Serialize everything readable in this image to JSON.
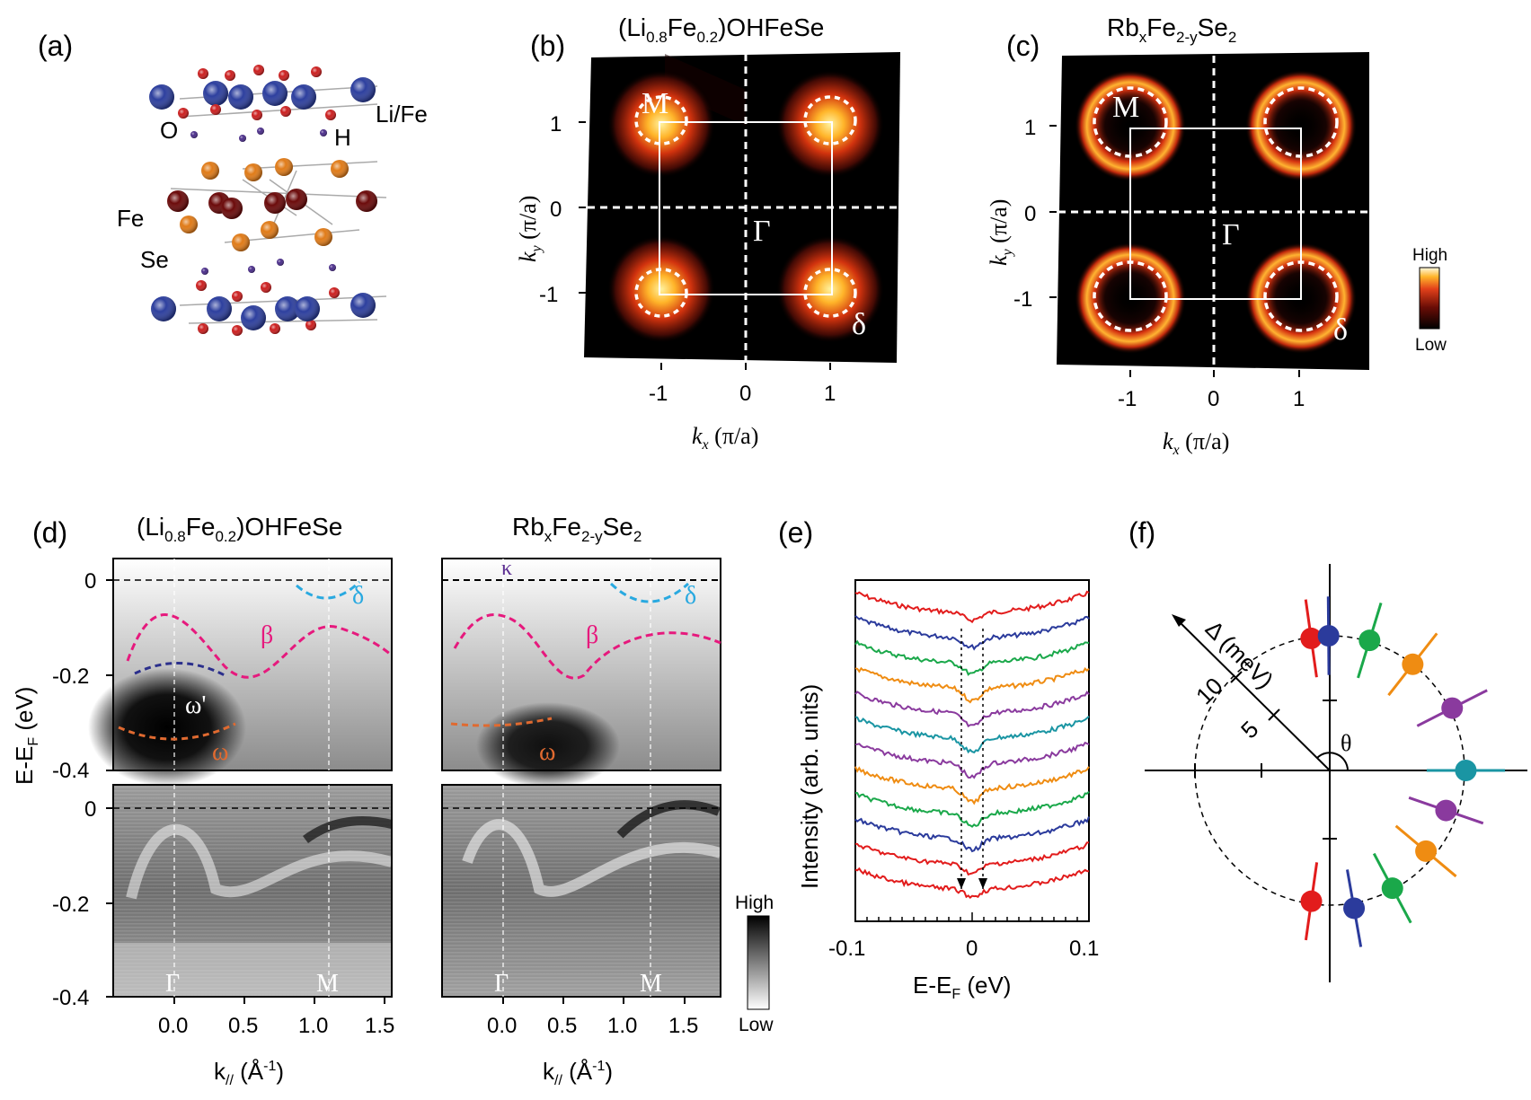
{
  "panels": {
    "a": {
      "label": "(a)",
      "atoms": {
        "o": "O",
        "h": "H",
        "li_fe": "Li/Fe",
        "fe": "Fe",
        "se": "Se"
      },
      "colors": {
        "li_fe": "#2d3f9e",
        "o": "#cc1f1f",
        "h": "#4a2d8a",
        "fe": "#6b0a0a",
        "se": "#e07b18"
      }
    },
    "b": {
      "label": "(b)",
      "title_main": "(Li",
      "title_sub1": "0.8",
      "title_mid": "Fe",
      "title_sub2": "0.2",
      "title_end": ")OHFeSe",
      "xlabel_k": "k",
      "xlabel_sub": "x",
      "xlabel_unit": " (π/a)",
      "ylabel_k": "k",
      "ylabel_sub": "y",
      "ylabel_unit": " (π/a)",
      "xticks": [
        "-1",
        "0",
        "1"
      ],
      "yticks": [
        "1",
        "0",
        "-1"
      ],
      "point_M": "M",
      "point_Gamma": "Γ",
      "point_delta": "δ"
    },
    "c": {
      "label": "(c)",
      "title_a": "Rb",
      "title_sub1": "x",
      "title_b": "Fe",
      "title_sub2": "2-y",
      "title_c": "Se",
      "title_sub3": "2",
      "xlabel_k": "k",
      "xlabel_sub": "x",
      "xlabel_unit": " (π/a)",
      "ylabel_k": "k",
      "ylabel_sub": "y",
      "ylabel_unit": " (π/a)",
      "xticks": [
        "-1",
        "0",
        "1"
      ],
      "yticks": [
        "1",
        "0",
        "-1"
      ],
      "point_M": "M",
      "point_Gamma": "Γ",
      "point_delta": "δ",
      "colorbar_high": "High",
      "colorbar_low": "Low"
    },
    "d": {
      "label": "(d)",
      "left_title_main": "(Li",
      "left_title_sub1": "0.8",
      "left_title_mid": "Fe",
      "left_title_sub2": "0.2",
      "left_title_end": ")OHFeSe",
      "right_title_a": "Rb",
      "right_title_sub1": "x",
      "right_title_b": "Fe",
      "right_title_sub2": "2-y",
      "right_title_c": "Se",
      "right_title_sub3": "2",
      "ylabel_main": "E-E",
      "ylabel_sub": "F",
      "ylabel_unit": " (eV)",
      "yticks_top": [
        "0",
        "-0.2",
        "-0.4"
      ],
      "yticks_bottom": [
        "0",
        "-0.2",
        "-0.4"
      ],
      "xticks": [
        "0.0",
        "0.5",
        "1.0",
        "1.5"
      ],
      "xlabel_main": "k",
      "xlabel_sub": "//",
      "xlabel_unit": " (Å",
      "xlabel_sup": "-1",
      "xlabel_close": ")",
      "band_labels": {
        "delta": "δ",
        "beta": "β",
        "omega_prime": "ω'",
        "omega": "ω",
        "kappa": "κ"
      },
      "point_Gamma": "Γ",
      "point_M": "M",
      "colorbar_high": "High",
      "colorbar_low": "Low"
    },
    "e": {
      "label": "(e)",
      "ylabel": "Intensity (arb. units)",
      "xlabel_main": "E-E",
      "xlabel_sub": "F",
      "xlabel_unit": " (eV)",
      "xticks": [
        "-0.1",
        "0",
        "0.1"
      ]
    },
    "f": {
      "label": "(f)",
      "radial_label": "Δ (meV)",
      "radial_ticks": [
        "10",
        "5"
      ],
      "angle_label": "θ"
    }
  },
  "chart_data": [
    {
      "panel": "e",
      "type": "line",
      "title": "",
      "xlabel": "E-EF (eV)",
      "ylabel": "Intensity (arb. units)",
      "xlim": [
        -0.1,
        0.1
      ],
      "note_on_curves": "12 symmetrized EDC curves, vertically offset, with a dip at E-EF = 0",
      "series_colors": [
        "#e21c1c",
        "#2b3b9c",
        "#1aa84a",
        "#ef8c12",
        "#8a3a9e",
        "#1a95a3",
        "#8a3a9e",
        "#ef8c12",
        "#1aa84a",
        "#2b3b9c",
        "#e21c1c",
        "#e21c1c"
      ],
      "gap_markers_x": [
        -0.011,
        0.011
      ]
    },
    {
      "panel": "f",
      "type": "scatter",
      "title": "",
      "coordinate_system": "polar",
      "radial_label": "Δ (meV)",
      "radial_ticks": [
        5,
        10
      ],
      "points": [
        {
          "theta_deg": 98,
          "delta_meV": 10.2,
          "color": "#e21c1c"
        },
        {
          "theta_deg": 90.5,
          "delta_meV": 10.3,
          "color": "#2b3b9c"
        },
        {
          "theta_deg": 73,
          "delta_meV": 10.4,
          "color": "#1aa84a"
        },
        {
          "theta_deg": 52,
          "delta_meV": 10.3,
          "color": "#ef8c12"
        },
        {
          "theta_deg": 27,
          "delta_meV": 10.5,
          "color": "#8a3a9e"
        },
        {
          "theta_deg": 0,
          "delta_meV": 10.4,
          "color": "#1a95a3"
        },
        {
          "theta_deg": -19,
          "delta_meV": 9.4,
          "color": "#8a3a9e"
        },
        {
          "theta_deg": -40,
          "delta_meV": 9.6,
          "color": "#ef8c12"
        },
        {
          "theta_deg": -62,
          "delta_meV": 10.2,
          "color": "#1aa84a"
        },
        {
          "theta_deg": -80,
          "delta_meV": 10.7,
          "color": "#2b3b9c"
        },
        {
          "theta_deg": -98,
          "delta_meV": 10.1,
          "color": "#e21c1c"
        }
      ]
    }
  ]
}
